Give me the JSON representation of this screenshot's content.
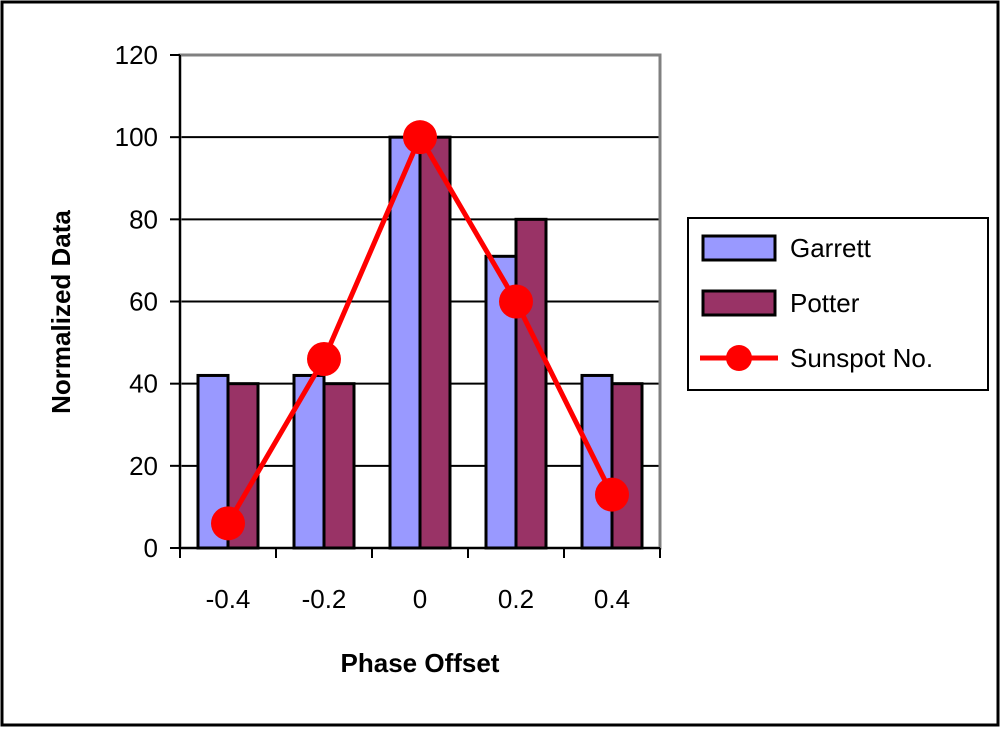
{
  "chart_data": {
    "type": "bar",
    "title": "",
    "xlabel": "Phase Offset",
    "ylabel": "Normalized Data",
    "categories": [
      "-0.4",
      "-0.2",
      "0",
      "0.2",
      "0.4"
    ],
    "ylim": [
      0,
      120
    ],
    "yticks": [
      "0",
      "20",
      "40",
      "60",
      "80",
      "100",
      "120"
    ],
    "grid": true,
    "legend_position": "right",
    "series": [
      {
        "name": "Garrett",
        "kind": "bar",
        "color": "#9999ff",
        "values": [
          42,
          42,
          100,
          71,
          42
        ]
      },
      {
        "name": "Potter",
        "kind": "bar",
        "color": "#993366",
        "values": [
          40,
          40,
          100,
          80,
          40
        ]
      },
      {
        "name": "Sunspot No.",
        "kind": "line",
        "color": "#ff0000",
        "values": [
          6,
          46,
          100,
          60,
          13
        ]
      }
    ]
  }
}
